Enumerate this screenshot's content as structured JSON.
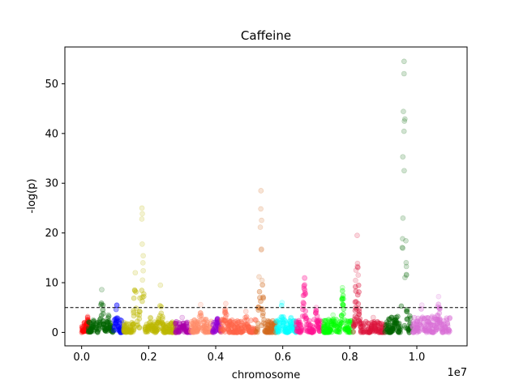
{
  "chart_data": {
    "type": "scatter",
    "title": "Caffeine",
    "xlabel": "chromosome",
    "ylabel": "-log(p)",
    "x_offset_label": "1e7",
    "xlim": [
      -0.05,
      1.15
    ],
    "ylim": [
      -2.7,
      57.4
    ],
    "x_ticks": [
      0.0,
      0.2,
      0.4,
      0.6,
      0.8,
      1.0
    ],
    "x_tick_labels": [
      "0.0",
      "0.2",
      "0.4",
      "0.6",
      "0.8",
      "1.0"
    ],
    "y_ticks": [
      0,
      10,
      20,
      30,
      40,
      50
    ],
    "y_tick_labels": [
      "0",
      "10",
      "20",
      "30",
      "40",
      "50"
    ],
    "threshold": 5,
    "grid": false,
    "series": [
      {
        "color": "#ff0000",
        "x_range": [
          0.0,
          0.02
        ],
        "base": 1.0,
        "peaks": [
          [
            0.018,
            3.2
          ]
        ]
      },
      {
        "color": "#006400",
        "x_range": [
          0.02,
          0.095
        ],
        "base": 1.0,
        "peaks": [
          [
            0.06,
            8.6
          ],
          [
            0.035,
            2.5
          ],
          [
            0.08,
            3.5
          ]
        ]
      },
      {
        "color": "#0000ff",
        "x_range": [
          0.095,
          0.125
        ],
        "base": 1.2,
        "peaks": [
          [
            0.105,
            5.5
          ]
        ]
      },
      {
        "color": "#bdb800",
        "x_range": [
          0.125,
          0.28
        ],
        "base": 1.0,
        "peaks": [
          [
            0.18,
            25.0
          ],
          [
            0.16,
            12.0
          ],
          [
            0.235,
            9.5
          ],
          [
            0.205,
            3.0
          ]
        ]
      },
      {
        "color": "#aa00aa",
        "x_range": [
          0.28,
          0.325
        ],
        "base": 1.0,
        "peaks": [
          [
            0.3,
            3.0
          ]
        ]
      },
      {
        "color": "#ff8c69",
        "x_range": [
          0.325,
          0.39
        ],
        "base": 1.2,
        "peaks": [
          [
            0.355,
            5.6
          ]
        ]
      },
      {
        "color": "#9400d3",
        "x_range": [
          0.39,
          0.415
        ],
        "base": 1.0,
        "peaks": [
          [
            0.405,
            2.8
          ]
        ]
      },
      {
        "color": "#ff6347",
        "x_range": [
          0.415,
          0.52
        ],
        "base": 1.2,
        "peaks": [
          [
            0.43,
            5.8
          ],
          [
            0.49,
            4.2
          ]
        ]
      },
      {
        "color": "#d2691e",
        "x_range": [
          0.52,
          0.58
        ],
        "base": 1.2,
        "peaks": [
          [
            0.535,
            28.5
          ]
        ]
      },
      {
        "color": "#00ffff",
        "x_range": [
          0.58,
          0.64
        ],
        "base": 1.2,
        "peaks": [
          [
            0.598,
            6.0
          ],
          [
            0.625,
            3.0
          ]
        ]
      },
      {
        "color": "#ff1493",
        "x_range": [
          0.64,
          0.72
        ],
        "base": 1.2,
        "peaks": [
          [
            0.665,
            11.0
          ],
          [
            0.7,
            5.0
          ]
        ]
      },
      {
        "color": "#00ff00",
        "x_range": [
          0.72,
          0.81
        ],
        "base": 1.2,
        "peaks": [
          [
            0.778,
            9.0
          ],
          [
            0.75,
            3.5
          ]
        ]
      },
      {
        "color": "#dc143c",
        "x_range": [
          0.81,
          0.905
        ],
        "base": 1.0,
        "peaks": [
          [
            0.822,
            19.5
          ],
          [
            0.87,
            3.0
          ]
        ]
      },
      {
        "color": "#006400",
        "x_range": [
          0.905,
          0.985
        ],
        "base": 1.5,
        "peaks": [
          [
            0.962,
            54.5
          ],
          [
            0.935,
            3.0
          ]
        ]
      },
      {
        "color": "#da70d6",
        "x_range": [
          0.985,
          1.1
        ],
        "base": 1.5,
        "peaks": [
          [
            1.015,
            5.5
          ],
          [
            1.065,
            7.2
          ]
        ]
      }
    ]
  }
}
